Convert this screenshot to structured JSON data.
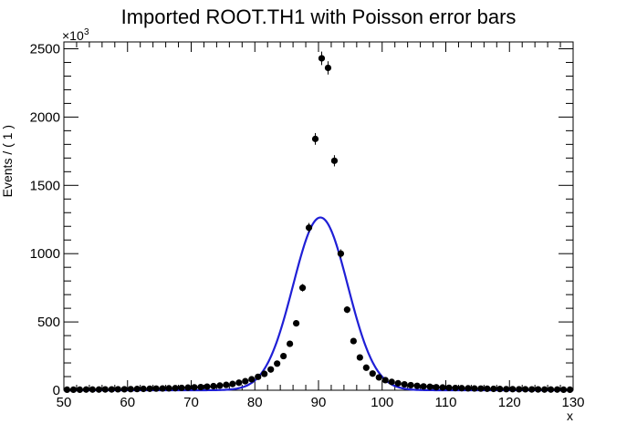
{
  "chart_data": {
    "type": "scatter",
    "title": "Imported ROOT.TH1 with Poisson error bars",
    "xlabel": "x",
    "ylabel": "Events / ( 1 )",
    "y_multiplier_label": "×10",
    "y_multiplier_exp": "3",
    "xlim": [
      50,
      130
    ],
    "ylim": [
      0,
      2550
    ],
    "x_ticks": [
      50,
      60,
      70,
      80,
      90,
      100,
      110,
      120,
      130
    ],
    "y_ticks": [
      0,
      500,
      1000,
      1500,
      2000,
      2500
    ],
    "series": [
      {
        "kind": "points",
        "color": "#000000",
        "x": [
          50.5,
          51.5,
          52.5,
          53.5,
          54.5,
          55.5,
          56.5,
          57.5,
          58.5,
          59.5,
          60.5,
          61.5,
          62.5,
          63.5,
          64.5,
          65.5,
          66.5,
          67.5,
          68.5,
          69.5,
          70.5,
          71.5,
          72.5,
          73.5,
          74.5,
          75.5,
          76.5,
          77.5,
          78.5,
          79.5,
          80.5,
          81.5,
          82.5,
          83.5,
          84.5,
          85.5,
          86.5,
          87.5,
          88.5,
          89.5,
          90.5,
          91.5,
          92.5,
          93.5,
          94.5,
          95.5,
          96.5,
          97.5,
          98.5,
          99.5,
          100.5,
          101.5,
          102.5,
          103.5,
          104.5,
          105.5,
          106.5,
          107.5,
          108.5,
          109.5,
          110.5,
          111.5,
          112.5,
          113.5,
          114.5,
          115.5,
          116.5,
          117.5,
          118.5,
          119.5,
          120.5,
          121.5,
          122.5,
          123.5,
          124.5,
          125.5,
          126.5,
          127.5,
          128.5,
          129.5
        ],
        "y": [
          4,
          4,
          4,
          5,
          5,
          5,
          6,
          6,
          7,
          7,
          8,
          9,
          10,
          11,
          12,
          13,
          14,
          15,
          17,
          19,
          21,
          23,
          26,
          30,
          34,
          39,
          46,
          55,
          66,
          80,
          98,
          120,
          152,
          195,
          250,
          340,
          490,
          750,
          1190,
          1840,
          2430,
          2360,
          1680,
          1000,
          590,
          360,
          240,
          165,
          122,
          94,
          74,
          61,
          51,
          43,
          37,
          32,
          28,
          25,
          22,
          20,
          18,
          16,
          15,
          14,
          13,
          12,
          11,
          10,
          9,
          8,
          8,
          7,
          7,
          6,
          6,
          5,
          5,
          5,
          4,
          4
        ]
      },
      {
        "kind": "curve",
        "color": "#1f1fd6",
        "function": "gaussian",
        "amplitude": 1265,
        "mean": 90.3,
        "sigma": 4.3
      }
    ]
  }
}
